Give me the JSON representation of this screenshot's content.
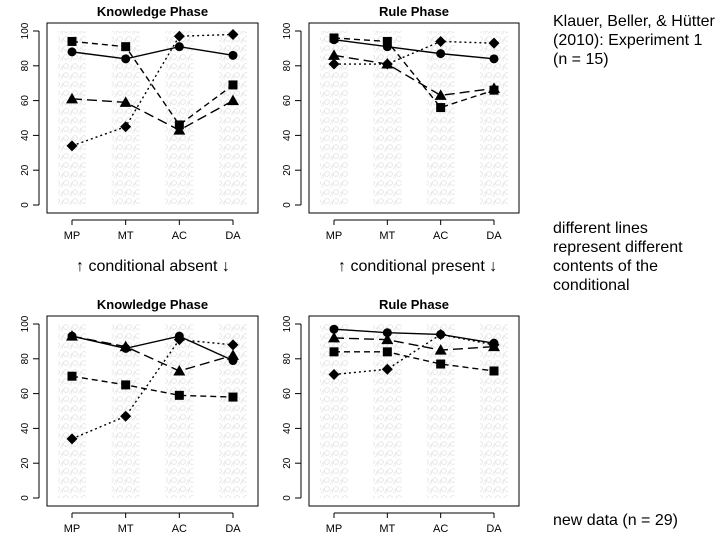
{
  "side_notes": {
    "citation": "Klauer, Beller, & Hütter (2010): Experiment 1 (n = 15)",
    "lines_explanation": "different lines represent different contents of the conditional",
    "new_data": "new data (n = 29)"
  },
  "captions": {
    "conditional_absent": "↑ conditional absent ↓",
    "conditional_present": "↑ conditional present ↓"
  },
  "colors": {
    "individual_points": "#b4b4b4",
    "means": "#000000"
  },
  "chart_data": [
    {
      "type": "line",
      "title": "Knowledge Phase",
      "categories": [
        "MP",
        "MT",
        "AC",
        "DA"
      ],
      "yticks": [
        0,
        20,
        40,
        60,
        80,
        100
      ],
      "ylim": [
        0,
        100
      ],
      "series": [
        {
          "marker": "circle",
          "line": "solid",
          "values": [
            88,
            84,
            91,
            86
          ]
        },
        {
          "marker": "square",
          "line": "dashed",
          "values": [
            94,
            91,
            46,
            69
          ]
        },
        {
          "marker": "triangle",
          "line": "longdash",
          "values": [
            61,
            59,
            43,
            60
          ]
        },
        {
          "marker": "diamond",
          "line": "dotted",
          "values": [
            34,
            45,
            97,
            98
          ]
        }
      ]
    },
    {
      "type": "line",
      "title": "Rule Phase",
      "categories": [
        "MP",
        "MT",
        "AC",
        "DA"
      ],
      "yticks": [
        0,
        20,
        40,
        60,
        80,
        100
      ],
      "ylim": [
        0,
        100
      ],
      "series": [
        {
          "marker": "circle",
          "line": "solid",
          "values": [
            95,
            91,
            87,
            84
          ]
        },
        {
          "marker": "square",
          "line": "dashed",
          "values": [
            96,
            94,
            56,
            66
          ]
        },
        {
          "marker": "triangle",
          "line": "longdash",
          "values": [
            86,
            81,
            63,
            67
          ]
        },
        {
          "marker": "diamond",
          "line": "dotted",
          "values": [
            81,
            81,
            94,
            93
          ]
        }
      ]
    },
    {
      "type": "line",
      "title": "Knowledge Phase",
      "categories": [
        "MP",
        "MT",
        "AC",
        "DA"
      ],
      "yticks": [
        0,
        20,
        40,
        60,
        80,
        100
      ],
      "ylim": [
        0,
        100
      ],
      "series": [
        {
          "marker": "circle",
          "line": "solid",
          "values": [
            93,
            86,
            93,
            79
          ]
        },
        {
          "marker": "square",
          "line": "dashed",
          "values": [
            70,
            65,
            59,
            58
          ]
        },
        {
          "marker": "triangle",
          "line": "longdash",
          "values": [
            93,
            87,
            73,
            82
          ]
        },
        {
          "marker": "diamond",
          "line": "dotted",
          "values": [
            34,
            47,
            91,
            88
          ]
        }
      ]
    },
    {
      "type": "line",
      "title": "Rule Phase",
      "categories": [
        "MP",
        "MT",
        "AC",
        "DA"
      ],
      "yticks": [
        0,
        20,
        40,
        60,
        80,
        100
      ],
      "ylim": [
        0,
        100
      ],
      "series": [
        {
          "marker": "circle",
          "line": "solid",
          "values": [
            97,
            95,
            94,
            89
          ]
        },
        {
          "marker": "square",
          "line": "dashed",
          "values": [
            84,
            84,
            77,
            73
          ]
        },
        {
          "marker": "triangle",
          "line": "longdash",
          "values": [
            92,
            91,
            85,
            87
          ]
        },
        {
          "marker": "diamond",
          "line": "dotted",
          "values": [
            71,
            74,
            94,
            88
          ]
        }
      ]
    }
  ]
}
